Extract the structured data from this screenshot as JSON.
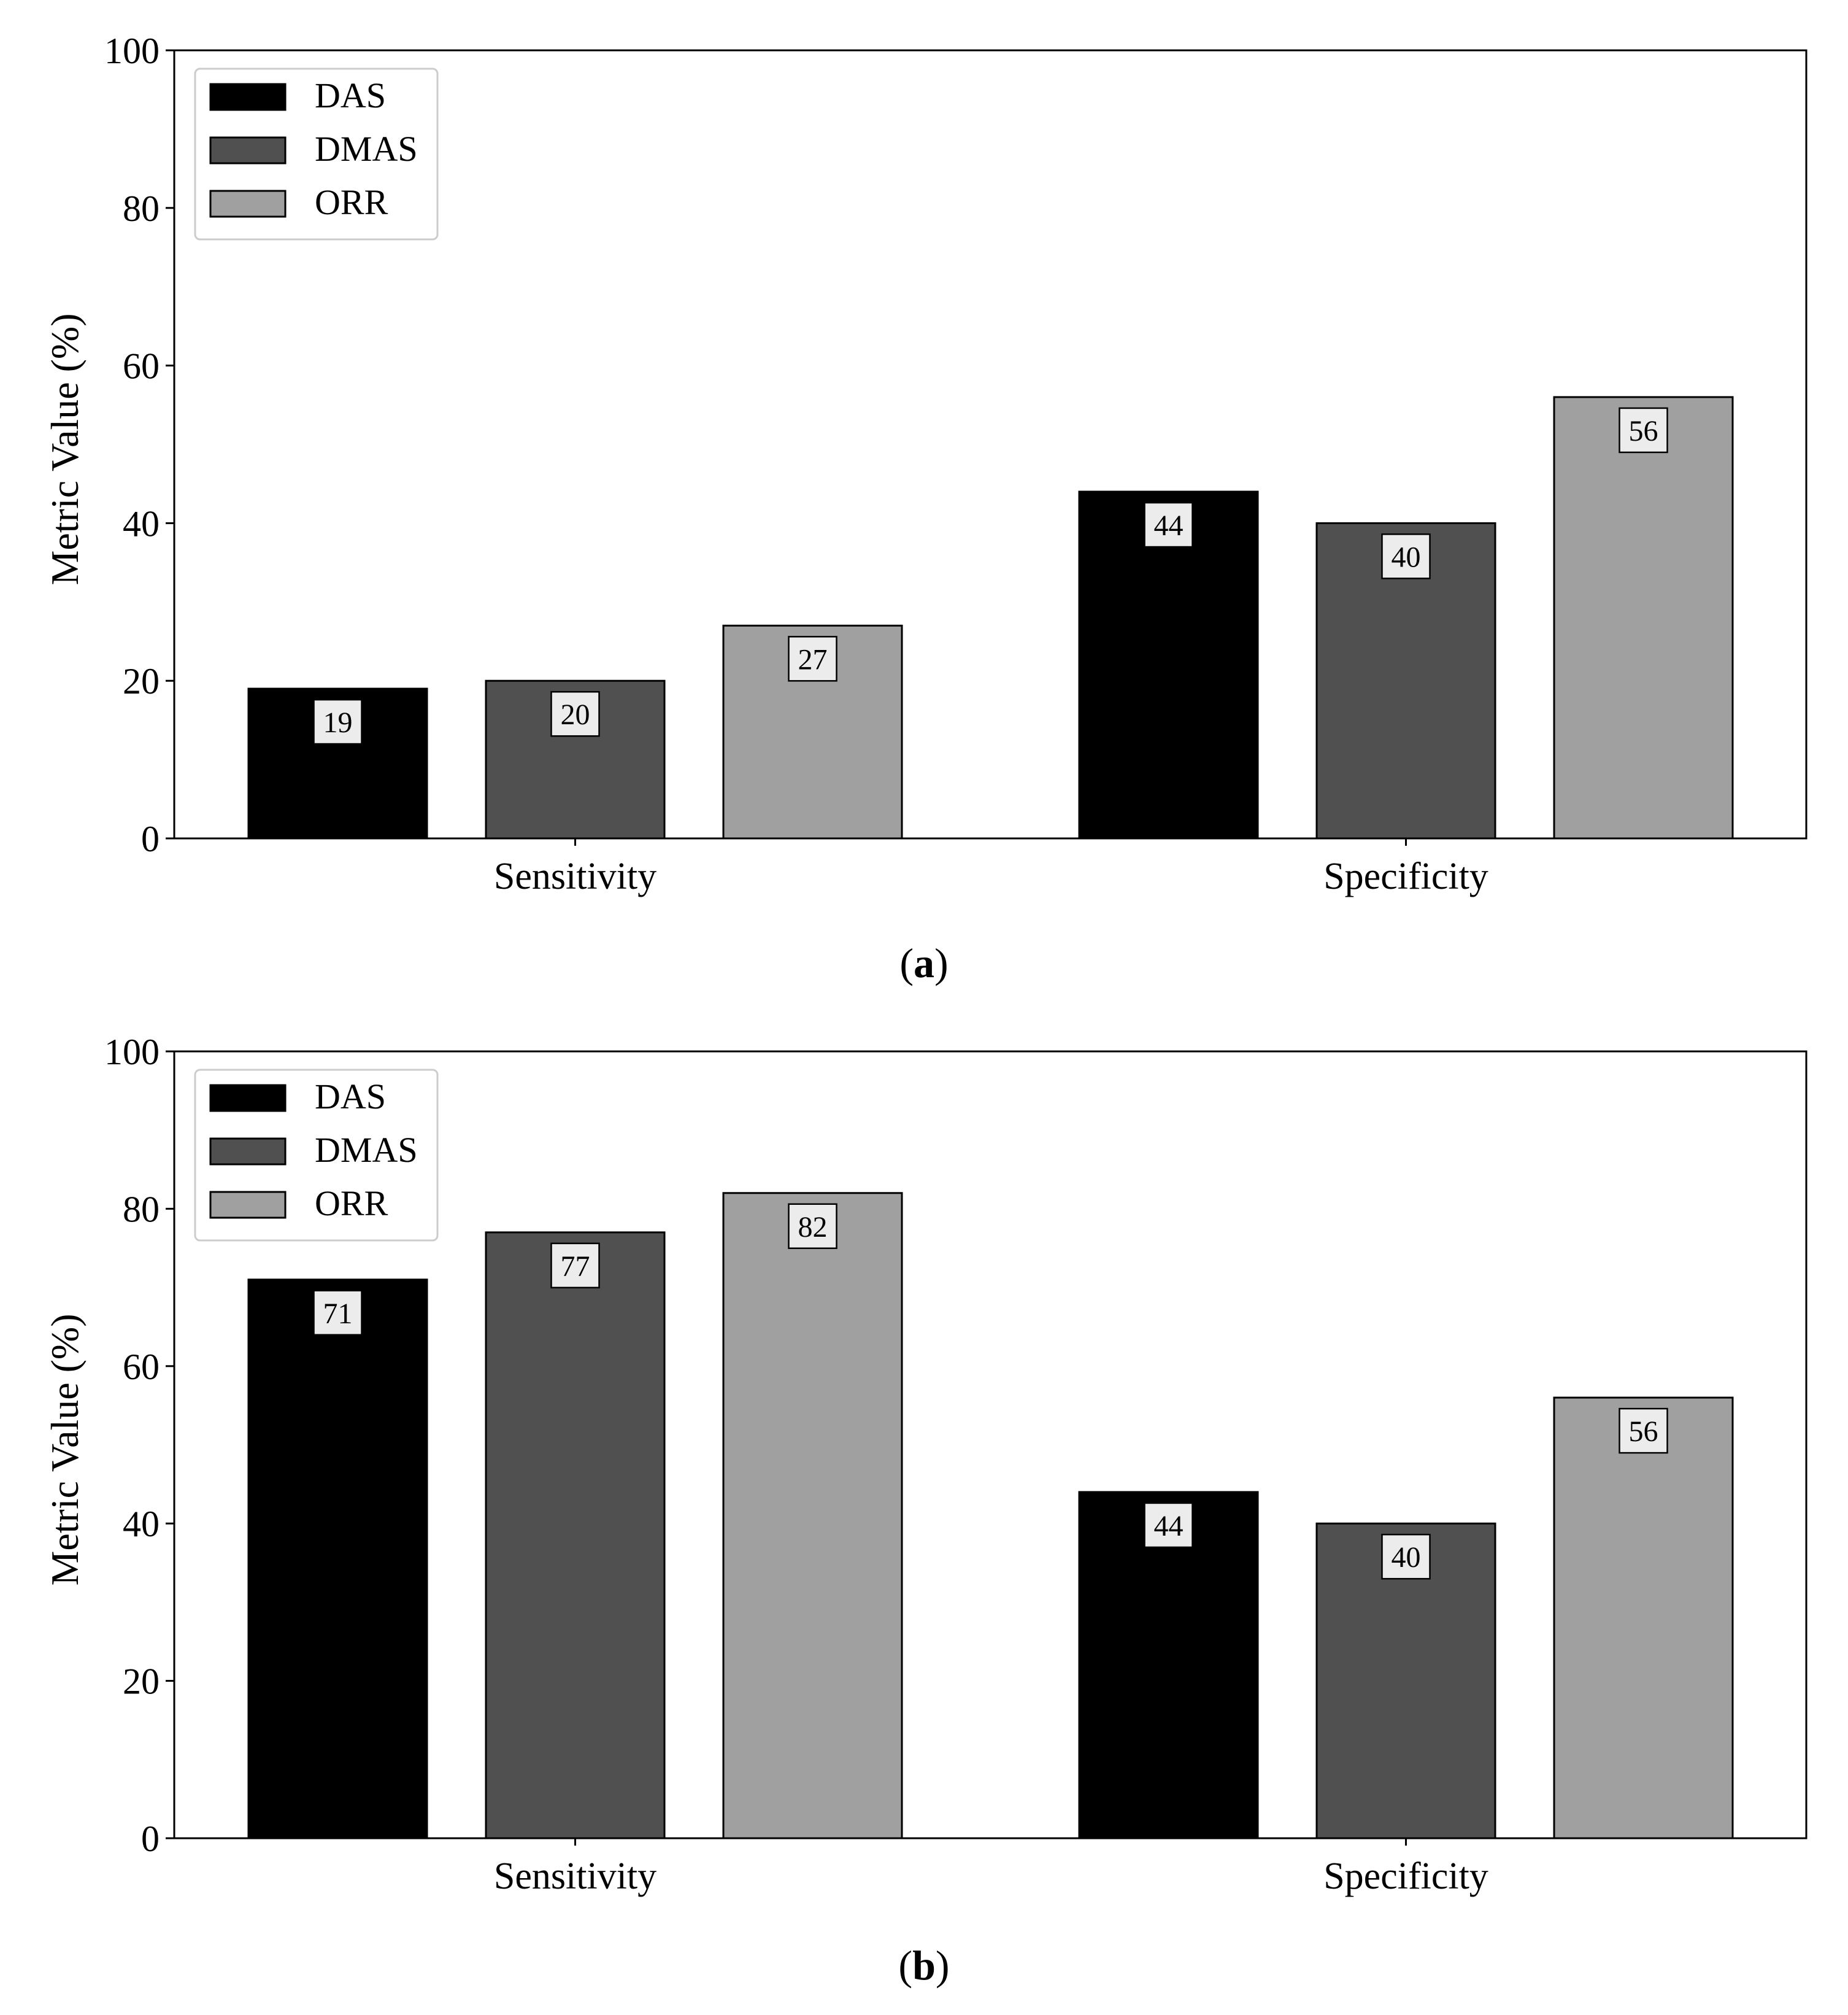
{
  "chart_data": [
    {
      "type": "bar",
      "panel_label": "a",
      "categories": [
        "Sensitivity",
        "Specificity"
      ],
      "series": [
        {
          "name": "DAS",
          "color": "#000000",
          "values": [
            19,
            44
          ]
        },
        {
          "name": "DMAS",
          "color": "#505050",
          "values": [
            20,
            40
          ]
        },
        {
          "name": "ORR",
          "color": "#a0a0a0",
          "values": [
            27,
            56
          ]
        }
      ],
      "title": "",
      "xlabel": "",
      "ylabel": "Metric Value (%)",
      "ylim": [
        0,
        100
      ],
      "yticks": [
        "0",
        "20",
        "40",
        "60",
        "80",
        "100"
      ],
      "legend": "top-left",
      "grid": false
    },
    {
      "type": "bar",
      "panel_label": "b",
      "categories": [
        "Sensitivity",
        "Specificity"
      ],
      "series": [
        {
          "name": "DAS",
          "color": "#000000",
          "values": [
            71,
            44
          ]
        },
        {
          "name": "DMAS",
          "color": "#505050",
          "values": [
            77,
            40
          ]
        },
        {
          "name": "ORR",
          "color": "#a0a0a0",
          "values": [
            82,
            56
          ]
        }
      ],
      "title": "",
      "xlabel": "",
      "ylabel": "Metric Value (%)",
      "ylim": [
        0,
        100
      ],
      "yticks": [
        "0",
        "20",
        "40",
        "60",
        "80",
        "100"
      ],
      "legend": "top-left",
      "grid": false
    }
  ]
}
